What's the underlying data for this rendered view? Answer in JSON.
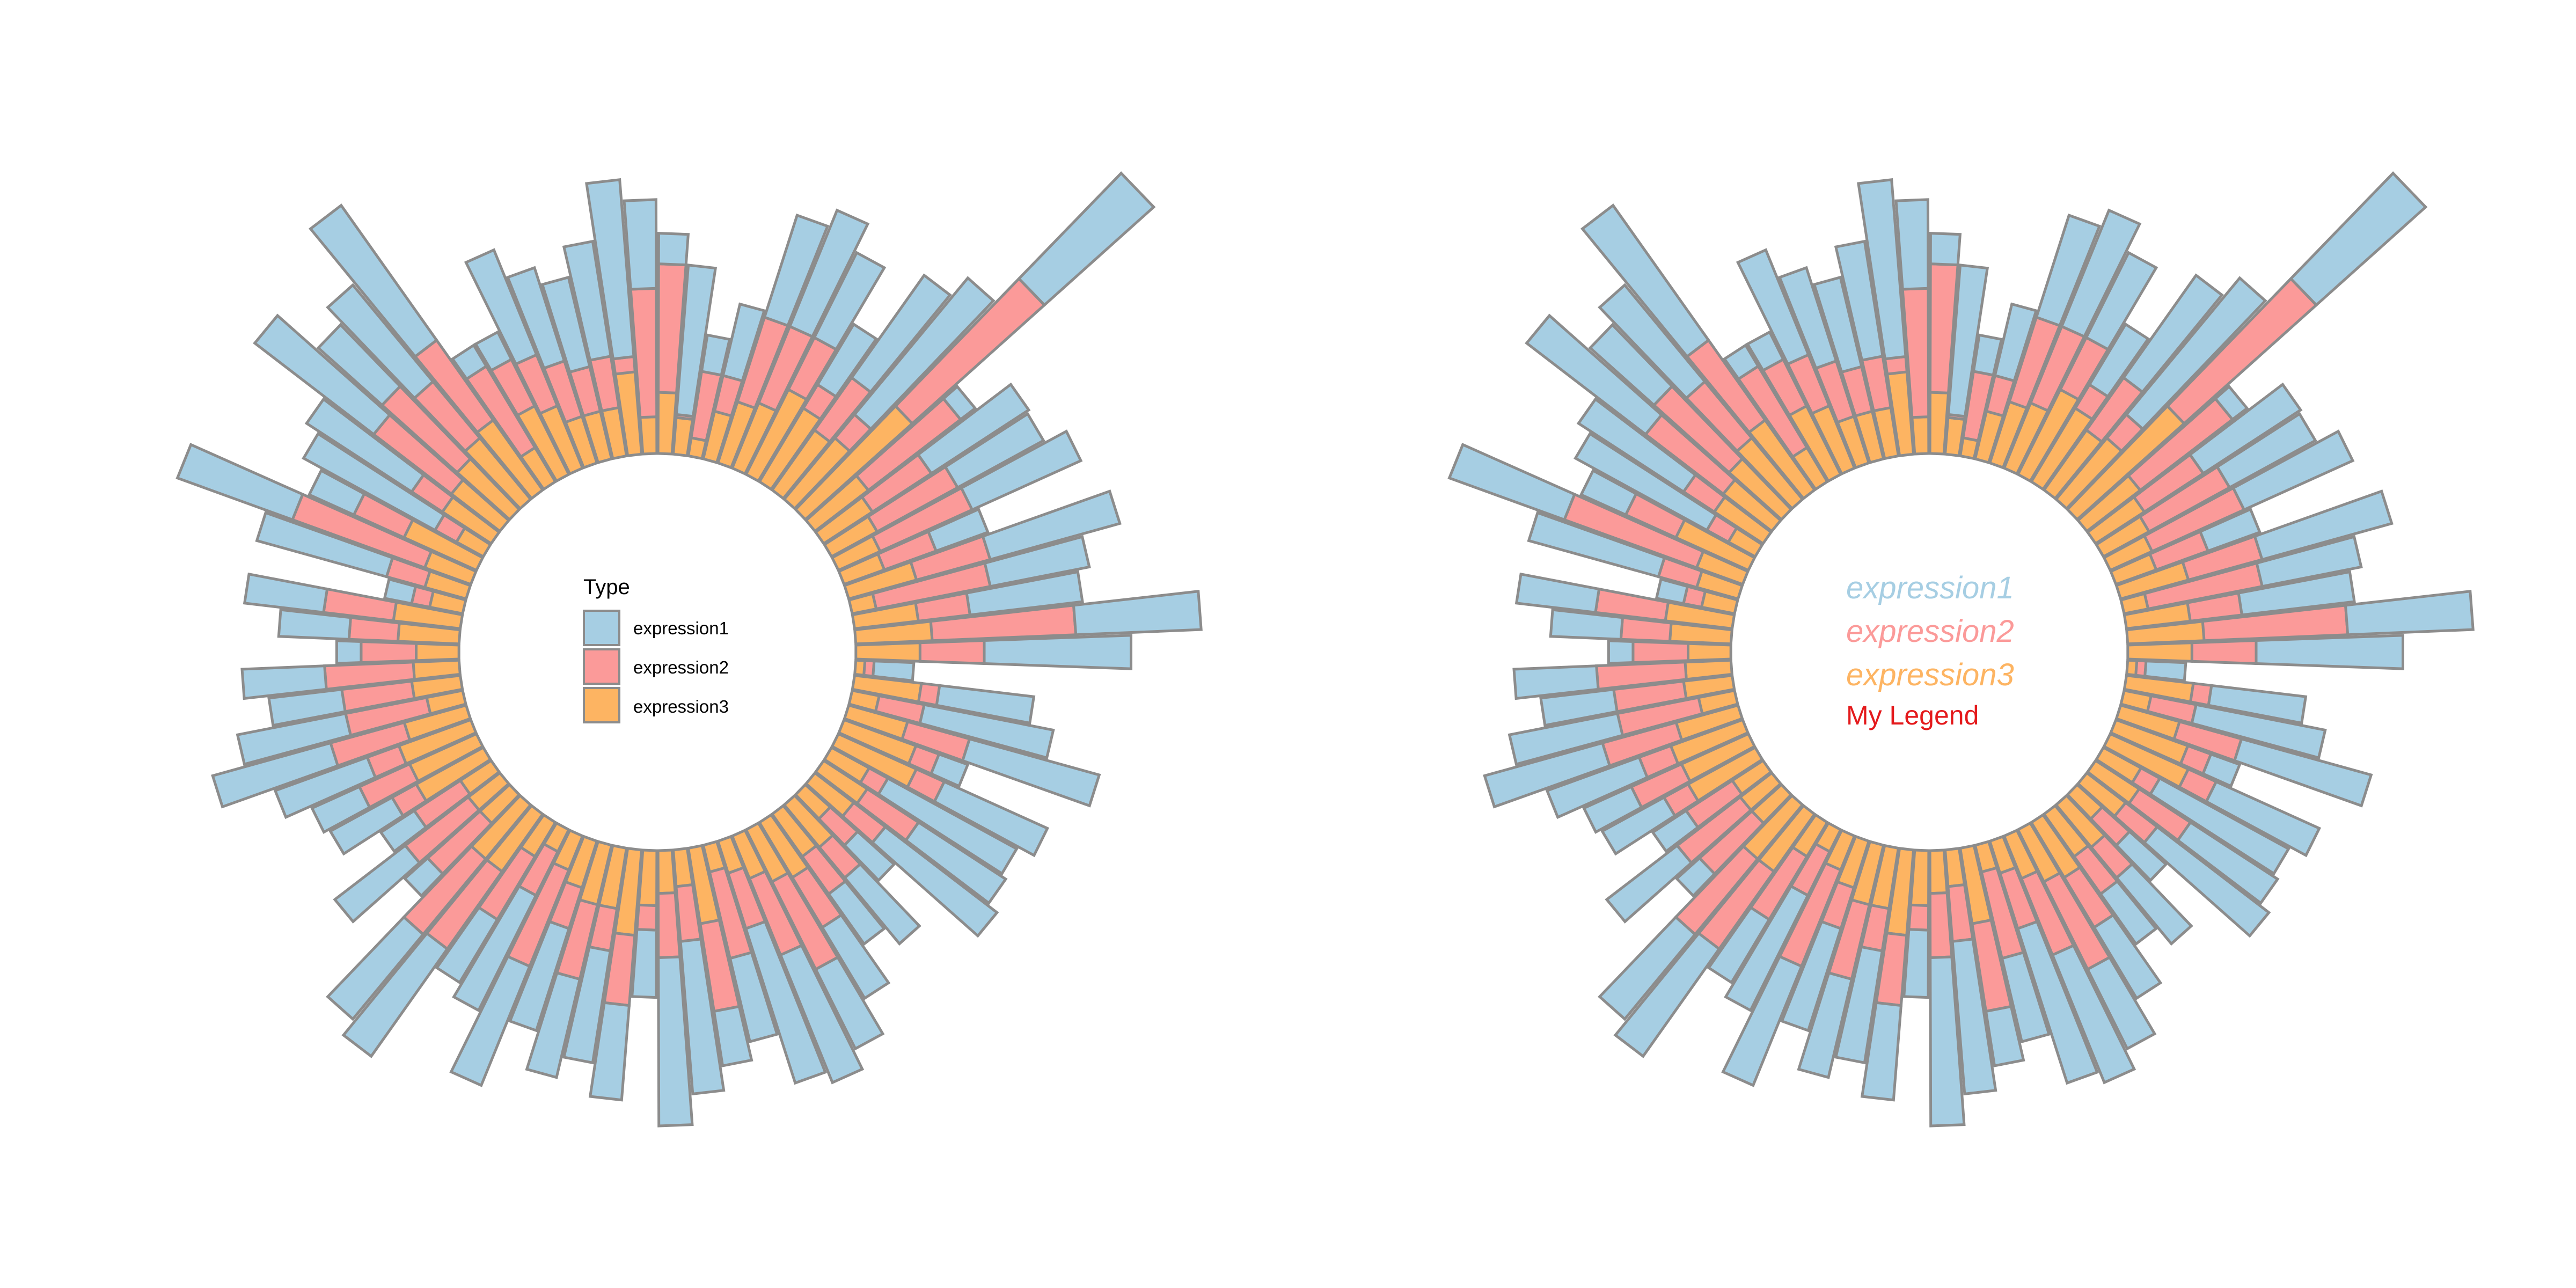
{
  "colors": {
    "expression1": "#a6cee3",
    "expression2": "#fb9a99",
    "expression3": "#fdb462",
    "outline": "#8c8c8c",
    "my_legend": "#e41a1c"
  },
  "chart_data": [
    {
      "type": "bar",
      "polar": true,
      "stacked": true,
      "series_order": [
        "expression3",
        "expression2",
        "expression1"
      ],
      "series": [
        {
          "name": "expression1",
          "values": [
            10,
            49,
            12,
            24,
            35,
            41,
            31,
            23,
            41,
            58,
            48,
            6,
            38,
            32,
            39,
            18,
            44,
            33,
            37,
            41,
            48,
            13,
            31,
            43,
            44,
            10,
            37,
            48,
            34,
            46,
            16,
            28,
            20,
            27,
            29,
            45,
            53,
            28,
            18,
            50,
            55,
            22,
            31,
            37,
            33,
            35,
            42,
            42,
            24,
            43,
            36,
            10,
            29,
            13,
            23,
            17,
            32,
            40,
            36,
            24,
            27,
            8,
            23,
            26,
            9,
            44,
            40,
            16,
            49,
            41,
            49,
            28,
            41,
            54,
            8,
            10,
            37,
            32,
            30,
            38,
            58,
            29
          ]
        },
        {
          "name": "expression2",
          "values": [
            42,
            1,
            22,
            12,
            29,
            27,
            19,
            9,
            21,
            10,
            58,
            38,
            23,
            30,
            33,
            18,
            25,
            38,
            17,
            47,
            21,
            3,
            6,
            15,
            21,
            8,
            10,
            7,
            20,
            13,
            12,
            13,
            15,
            19,
            32,
            27,
            19,
            29,
            29,
            18,
            21,
            8,
            23,
            14,
            25,
            14,
            34,
            16,
            24,
            31,
            32,
            23,
            26,
            18,
            9,
            18,
            11,
            25,
            27,
            23,
            29,
            18,
            16,
            23,
            6,
            13,
            46,
            18,
            8,
            12,
            32,
            33,
            24,
            32,
            31,
            17,
            18,
            19,
            15,
            17,
            5,
            42
          ]
        },
        {
          "name": "expression3",
          "values": [
            20,
            12,
            6,
            16,
            21,
            23,
            31,
            28,
            24,
            26,
            47,
            22,
            19,
            17,
            15,
            14,
            23,
            8,
            21,
            25,
            21,
            3,
            22,
            9,
            20,
            25,
            28,
            14,
            17,
            16,
            11,
            18,
            17,
            21,
            19,
            15,
            11,
            9,
            25,
            12,
            14,
            18,
            28,
            20,
            20,
            16,
            12,
            8,
            13,
            23,
            23,
            13,
            13,
            12,
            25,
            24,
            25,
            21,
            12,
            16,
            15,
            14,
            20,
            22,
            11,
            14,
            16,
            26,
            10,
            19,
            20,
            23,
            26,
            28,
            13,
            25,
            22,
            16,
            16,
            16,
            27,
            12
          ]
        }
      ]
    },
    {
      "type": "bar",
      "polar": true,
      "stacked": true,
      "series_order": [
        "expression3",
        "expression2",
        "expression1"
      ],
      "series": [
        {
          "name": "expression1",
          "values": [
            10,
            49,
            12,
            24,
            35,
            41,
            31,
            23,
            41,
            58,
            48,
            6,
            38,
            32,
            39,
            18,
            44,
            33,
            37,
            41,
            48,
            13,
            31,
            43,
            44,
            10,
            37,
            48,
            34,
            46,
            16,
            28,
            20,
            27,
            29,
            45,
            53,
            28,
            18,
            50,
            55,
            22,
            31,
            37,
            33,
            35,
            42,
            42,
            24,
            43,
            36,
            10,
            29,
            13,
            23,
            17,
            32,
            40,
            36,
            24,
            27,
            8,
            23,
            26,
            9,
            44,
            40,
            16,
            49,
            41,
            49,
            28,
            41,
            54,
            8,
            10,
            37,
            32,
            30,
            38,
            58,
            29
          ]
        },
        {
          "name": "expression2",
          "values": [
            42,
            1,
            22,
            12,
            29,
            27,
            19,
            9,
            21,
            10,
            58,
            38,
            23,
            30,
            33,
            18,
            25,
            38,
            17,
            47,
            21,
            3,
            6,
            15,
            21,
            8,
            10,
            7,
            20,
            13,
            12,
            13,
            15,
            19,
            32,
            27,
            19,
            29,
            29,
            18,
            21,
            8,
            23,
            14,
            25,
            14,
            34,
            16,
            24,
            31,
            32,
            23,
            26,
            18,
            9,
            18,
            11,
            25,
            27,
            23,
            29,
            18,
            16,
            23,
            6,
            13,
            46,
            18,
            8,
            12,
            32,
            33,
            24,
            32,
            31,
            17,
            18,
            19,
            15,
            17,
            5,
            42
          ]
        },
        {
          "name": "expression3",
          "values": [
            20,
            12,
            6,
            16,
            21,
            23,
            31,
            28,
            24,
            26,
            47,
            22,
            19,
            17,
            15,
            14,
            23,
            8,
            21,
            25,
            21,
            3,
            22,
            9,
            20,
            25,
            28,
            14,
            17,
            16,
            11,
            18,
            17,
            21,
            19,
            15,
            11,
            9,
            25,
            12,
            14,
            18,
            28,
            20,
            20,
            16,
            12,
            8,
            13,
            23,
            23,
            13,
            13,
            12,
            25,
            24,
            25,
            21,
            12,
            16,
            15,
            14,
            20,
            22,
            11,
            14,
            16,
            26,
            10,
            19,
            20,
            23,
            26,
            28,
            13,
            25,
            22,
            16,
            16,
            16,
            27,
            12
          ]
        }
      ]
    }
  ],
  "legend_left": {
    "title": "Type",
    "items": [
      "expression1",
      "expression2",
      "expression3"
    ]
  },
  "legend_right": {
    "items": [
      "expression1",
      "expression2",
      "expression3"
    ],
    "title": "My Legend"
  }
}
